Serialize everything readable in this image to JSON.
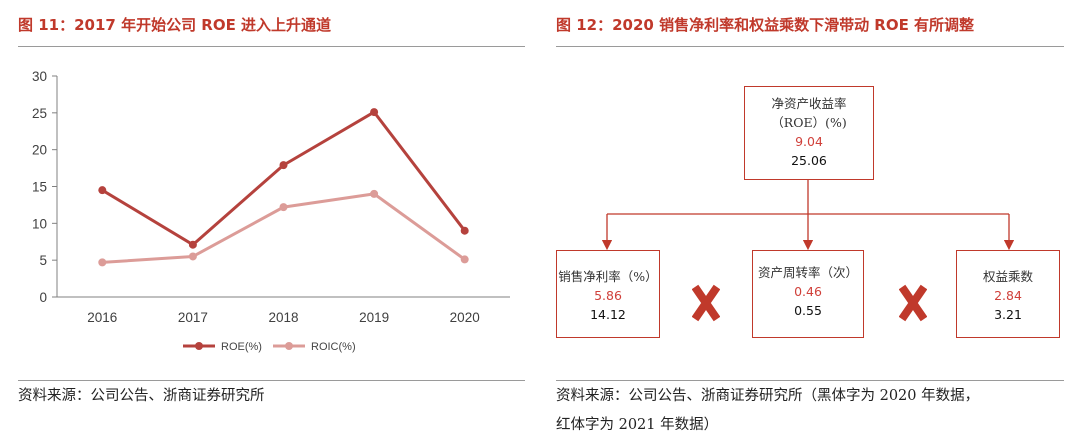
{
  "left_figure": {
    "title": "图 11：2017 年开始公司 ROE 进入上升通道",
    "source": "资料来源：公司公告、浙商证券研究所"
  },
  "right_figure": {
    "title": "图 12：2020 销售净利率和权益乘数下滑带动 ROE 有所调整",
    "source_line1": "资料来源：公司公告、浙商证券研究所（黑体字为 2020 年数据，",
    "source_line2": "红体字为 2021 年数据）"
  },
  "chart_data": [
    {
      "type": "line",
      "categories": [
        "2016",
        "2017",
        "2018",
        "2019",
        "2020"
      ],
      "series": [
        {
          "name": "ROE(%)",
          "values": [
            14.5,
            7.1,
            17.9,
            25.1,
            9.0
          ],
          "color": "#b5423d"
        },
        {
          "name": "ROIC(%)",
          "values": [
            4.7,
            5.5,
            12.2,
            14.0,
            5.1
          ],
          "color": "#dc9c98"
        }
      ],
      "yticks": [
        "0",
        "5",
        "10",
        "15",
        "20",
        "25",
        "30"
      ],
      "ylim": [
        0,
        30
      ],
      "legend_position": "bottom"
    }
  ],
  "dupont": {
    "roe": {
      "label1": "净资产收益率",
      "label2": "（ROE）(%)",
      "value_2021": "9.04",
      "value_2020": "25.06"
    },
    "net_margin": {
      "label": "销售净利率（%）",
      "value_2021": "5.86",
      "value_2020": "14.12"
    },
    "asset_turnover": {
      "label": "资产周转率（次）",
      "value_2021": "0.46",
      "value_2020": "0.55"
    },
    "equity_multiplier": {
      "label": "权益乘数",
      "value_2021": "2.84",
      "value_2020": "3.21"
    }
  },
  "colors": {
    "accent": "#c0392b",
    "roe_line": "#b5423d",
    "roic_line": "#dc9c98",
    "multiply": "#c0392b"
  }
}
